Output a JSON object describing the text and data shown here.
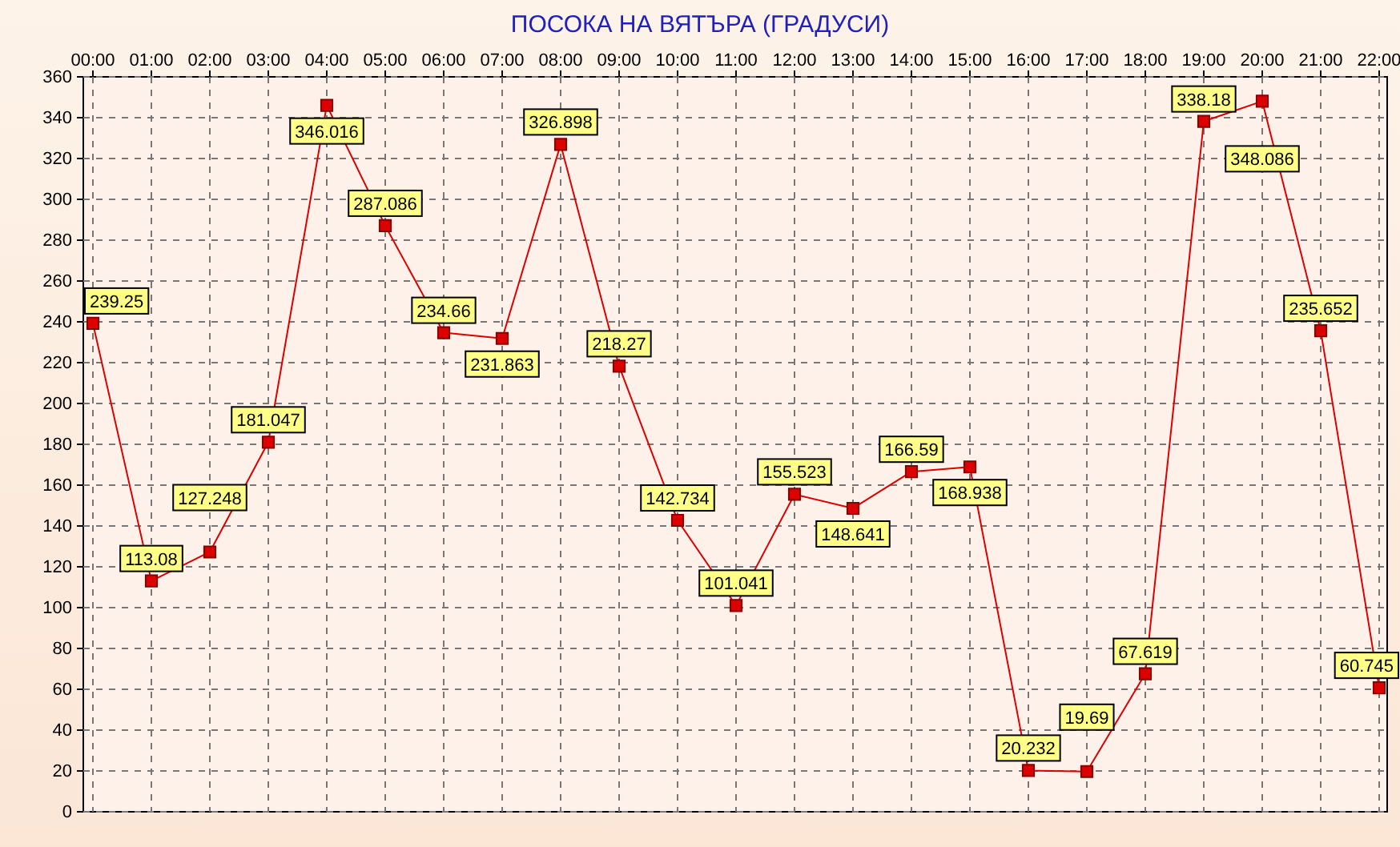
{
  "chart_data": {
    "type": "line",
    "title": "ПОСОКА НА ВЯТЪРА    (ГРАДУСИ)",
    "categories": [
      "00:00",
      "01:00",
      "02:00",
      "03:00",
      "04:00",
      "05:00",
      "06:00",
      "07:00",
      "08:00",
      "09:00",
      "10:00",
      "11:00",
      "12:00",
      "13:00",
      "14:00",
      "15:00",
      "16:00",
      "17:00",
      "18:00",
      "19:00",
      "20:00",
      "21:00",
      "22:00"
    ],
    "series": [
      {
        "color": "#dd0000",
        "values": [
          239.25,
          113.08,
          127.248,
          181.047,
          346.016,
          287.086,
          234.66,
          231.863,
          326.898,
          218.27,
          142.734,
          101.041,
          155.523,
          148.641,
          166.59,
          168.938,
          20.232,
          19.69,
          67.619,
          338.18,
          348.086,
          235.652,
          60.745
        ]
      }
    ],
    "ylim": [
      0,
      360
    ],
    "yticks": [
      0,
      20,
      40,
      60,
      80,
      100,
      120,
      140,
      160,
      180,
      200,
      220,
      240,
      260,
      280,
      300,
      320,
      340,
      360
    ],
    "grid": true,
    "marker": "square",
    "line_style": "solid",
    "data_labels": true
  }
}
